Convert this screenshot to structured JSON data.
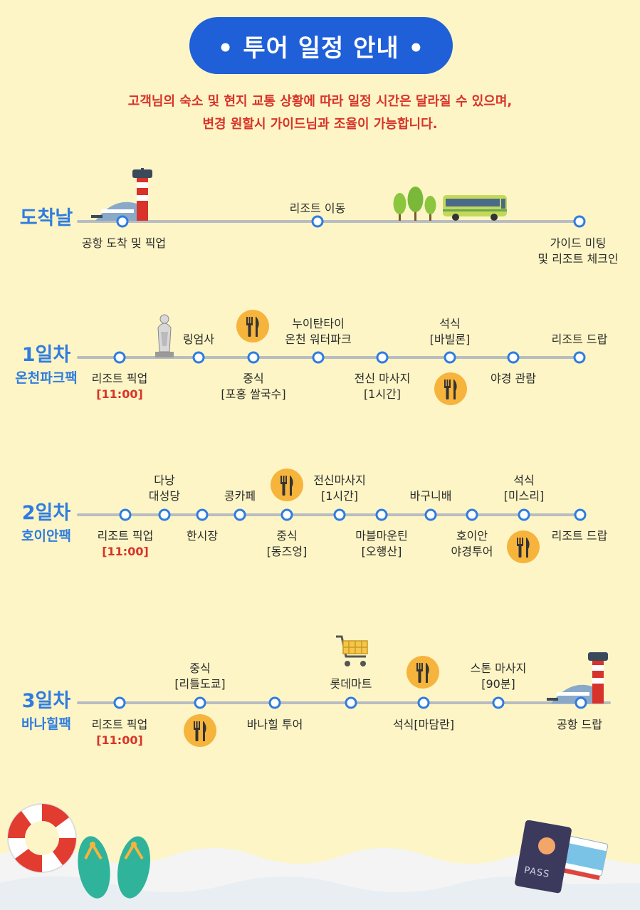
{
  "header": {
    "title": "• 투어 일정 안내 •"
  },
  "notice": {
    "line1": "고객님의 숙소 및 현지 교통 상황에 따라 일정 시간은 달라질 수 있으며,",
    "line2": "변경 원할시 가이드님과 조율이 가능합니다."
  },
  "arrival": {
    "name": "도착날",
    "stops": [
      {
        "label": "공항 도착 및 픽업"
      },
      {
        "label": "리조트 이동"
      },
      {
        "label": "가이드 미팅"
      },
      {
        "label": "및 리조트 체크인"
      }
    ]
  },
  "day1": {
    "name": "1일차",
    "sub": "온천파크팩",
    "stops": [
      {
        "label": "리조트 픽업"
      },
      {
        "label": "[11:00]"
      },
      {
        "label": "링엄사"
      },
      {
        "label": "중식"
      },
      {
        "label": "[포홍 쌀국수]"
      },
      {
        "label": "누이탄타이"
      },
      {
        "label": "온천 워터파크"
      },
      {
        "label": "전신 마사지"
      },
      {
        "label": "[1시간]"
      },
      {
        "label": "석식"
      },
      {
        "label": "[바빌론]"
      },
      {
        "label": "야경 관람"
      },
      {
        "label": "리조트 드랍"
      }
    ]
  },
  "day2": {
    "name": "2일차",
    "sub": "호이안팩",
    "stops": [
      {
        "label": "리조트 픽업"
      },
      {
        "label": "[11:00]"
      },
      {
        "label": "다낭"
      },
      {
        "label": "대성당"
      },
      {
        "label": "한시장"
      },
      {
        "label": "콩카페"
      },
      {
        "label": "중식"
      },
      {
        "label": "[동즈엉]"
      },
      {
        "label": "전신마사지"
      },
      {
        "label": "[1시간]"
      },
      {
        "label": "마블마운틴"
      },
      {
        "label": "[오행산]"
      },
      {
        "label": "바구니배"
      },
      {
        "label": "호이안"
      },
      {
        "label": "야경투어"
      },
      {
        "label": "석식"
      },
      {
        "label": "[미스리]"
      },
      {
        "label": "리조트 드랍"
      }
    ]
  },
  "day3": {
    "name": "3일차",
    "sub": "바나힐팩",
    "stops": [
      {
        "label": "리조트 픽업"
      },
      {
        "label": "[11:00]"
      },
      {
        "label": "중식"
      },
      {
        "label": "[리틀도쿄]"
      },
      {
        "label": "바나힐 투어"
      },
      {
        "label": "롯데마트"
      },
      {
        "label": "석식[마담란]"
      },
      {
        "label": "스톤 마사지"
      },
      {
        "label": "[90분]"
      },
      {
        "label": "공항 드랍"
      }
    ]
  },
  "decor": {
    "passport_text": "PASS"
  },
  "colors": {
    "accent": "#1f5fd8",
    "day": "#2f7ce0",
    "notice": "#d8332a",
    "meal": "#f6b43c",
    "background": "#fdf5c6"
  }
}
